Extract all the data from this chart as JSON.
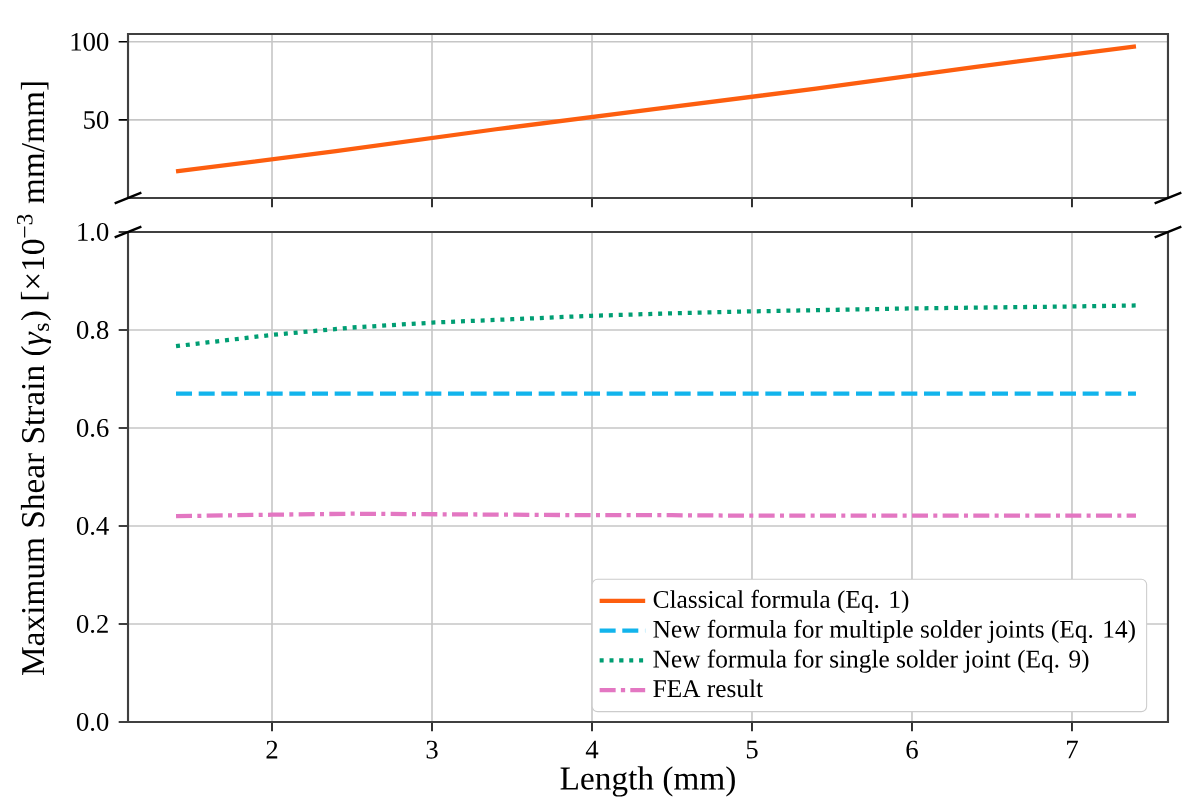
{
  "chart_data": [
    {
      "type": "line",
      "x": [
        1.4,
        2.4,
        3.4,
        4.4,
        5.4,
        6.4,
        7.4
      ],
      "xlim": [
        1.1,
        7.6
      ],
      "xticks": [
        2,
        3,
        4,
        5,
        6,
        7
      ],
      "ylim": [
        0,
        105
      ],
      "yticks": [
        50,
        100
      ],
      "grid": true,
      "tick_labels": "y",
      "series": [
        {
          "name": "Classical formula (Eq. 1)",
          "color": "#fd5e0f",
          "line_style": "solid",
          "values": [
            17,
            30,
            44,
            57,
            70,
            84,
            97
          ]
        }
      ]
    },
    {
      "type": "line",
      "x": [
        1.4,
        2,
        2.5,
        3,
        3.5,
        4,
        4.5,
        5,
        5.5,
        6,
        6.5,
        7,
        7.4
      ],
      "xlim": [
        1.1,
        7.6
      ],
      "xticks": [
        2,
        3,
        4,
        5,
        6,
        7
      ],
      "ylim": [
        0,
        1
      ],
      "yticks": [
        {
          "value": 0,
          "label": "0.0"
        },
        {
          "value": 0.2,
          "label": "0.2"
        },
        {
          "value": 0.4,
          "label": "0.4"
        },
        {
          "value": 0.6,
          "label": "0.6"
        },
        {
          "value": 0.8,
          "label": "0.8"
        },
        {
          "value": 1,
          "label": "1.0"
        }
      ],
      "grid": true,
      "legend": "bottom right",
      "xlabel": "Length (mm)",
      "ylabel": "Maximum Shear Strain (*γ*$_{s}$) [×10$^{−3}$ mm/mm]",
      "series": [
        {
          "name": "New formula for multiple solder joints (Eq. 14)",
          "color": "#12b4ec",
          "line_style": "dashed",
          "values": [
            0.67,
            0.67,
            0.67,
            0.67,
            0.67,
            0.67,
            0.67,
            0.67,
            0.67,
            0.67,
            0.67,
            0.67,
            0.67
          ]
        },
        {
          "name": "New formula for single solder joint (Eq. 9)",
          "color": "#009e73",
          "line_style": "dotted",
          "values": [
            0.767,
            0.79,
            0.805,
            0.815,
            0.822,
            0.829,
            0.834,
            0.838,
            0.841,
            0.844,
            0.846,
            0.848,
            0.85
          ]
        },
        {
          "name": "FEA result",
          "color": "#e377c2",
          "line_style": "dashdot",
          "values": [
            0.42,
            0.423,
            0.425,
            0.424,
            0.423,
            0.422,
            0.422,
            0.421,
            0.421,
            0.421,
            0.421,
            0.421,
            0.421
          ]
        }
      ]
    }
  ]
}
